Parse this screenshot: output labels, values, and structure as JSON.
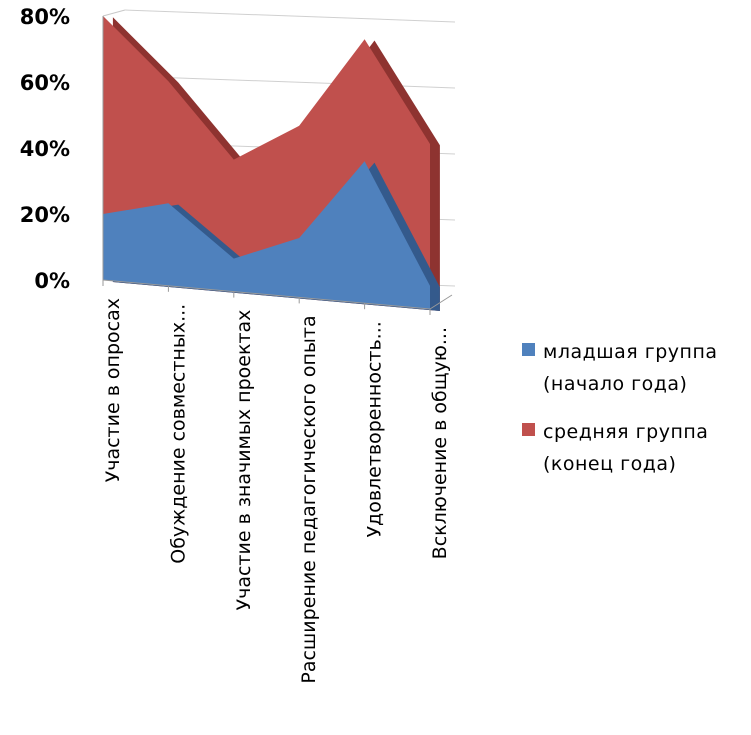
{
  "chart_data": {
    "type": "area",
    "y_tick_labels": [
      "0%",
      "20%",
      "40%",
      "60%",
      "80%"
    ],
    "ylim": [
      0,
      80
    ],
    "grid": true,
    "legend_position": "right",
    "categories": [
      "Участие в опросах",
      "Обуждение совместных...",
      "Участие в значимых проектах",
      "Расширение педагогического опыта",
      "Удовлетворенность...",
      "Всключение в общую..."
    ],
    "series": [
      {
        "name": "младшая группа (начало года)",
        "color": "#4f81bd",
        "values": [
          20,
          25,
          10,
          18,
          43,
          7
        ]
      },
      {
        "name": "средняя группа (конец года)",
        "color": "#c0504d",
        "values": [
          80,
          62,
          40,
          52,
          80,
          50
        ]
      }
    ]
  }
}
